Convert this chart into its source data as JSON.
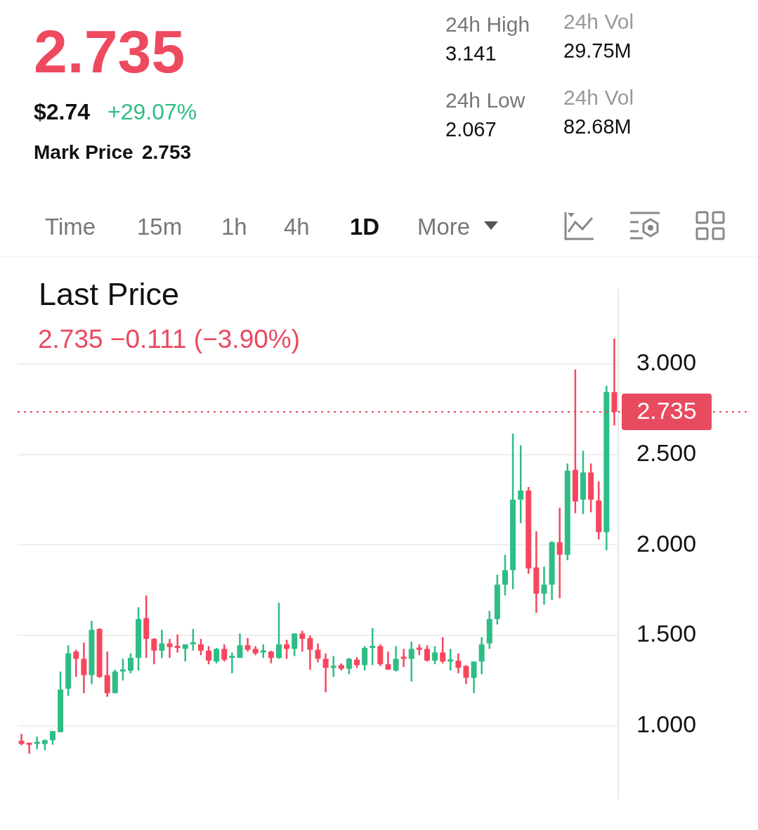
{
  "chart_data": {
    "type": "candlestick",
    "title": "Last Price",
    "subtitle": "2.735  −0.111 (−3.90%)",
    "annotations": [
      "2.735",
      "$2.74",
      "+29.07%",
      "Mark Price",
      "2.753",
      "24h High",
      "3.141",
      "24h Low",
      "2.067",
      "24h Vol",
      "29.75M",
      "24h Vol",
      "82.68M",
      "Time",
      "15m",
      "1h",
      "4h",
      "1D",
      "More"
    ],
    "categories": [
      null,
      null,
      null,
      null,
      null,
      null,
      null,
      null,
      null,
      null,
      null,
      null,
      null,
      null,
      null,
      null,
      null,
      null,
      null,
      null,
      null,
      null,
      null,
      null,
      null,
      null,
      null,
      null,
      null,
      null,
      null,
      null,
      null,
      null,
      null,
      null,
      null,
      null,
      null,
      null,
      null,
      null,
      null,
      null,
      null,
      null,
      null,
      null,
      null,
      null,
      null,
      null,
      null,
      null,
      null,
      null,
      null,
      null,
      null,
      null,
      null,
      null,
      null,
      null,
      null,
      null,
      null,
      null,
      null,
      null,
      null,
      null,
      null,
      null,
      null,
      null,
      null
    ],
    "ohlc": [
      [
        0.917,
        0.955,
        0.892,
        0.9
      ],
      [
        0.9,
        0.905,
        0.845,
        0.895
      ],
      [
        0.9,
        0.94,
        0.87,
        0.905
      ],
      [
        0.9,
        0.925,
        0.865,
        0.92
      ],
      [
        0.92,
        0.97,
        0.895,
        0.97
      ],
      [
        0.965,
        1.3,
        0.965,
        1.2
      ],
      [
        1.205,
        1.445,
        1.165,
        1.4
      ],
      [
        1.41,
        1.42,
        1.27,
        1.37
      ],
      [
        1.37,
        1.46,
        1.18,
        1.28
      ],
      [
        1.28,
        1.58,
        1.23,
        1.53
      ],
      [
        1.535,
        1.54,
        1.265,
        1.27
      ],
      [
        1.28,
        1.41,
        1.16,
        1.18
      ],
      [
        1.18,
        1.31,
        1.18,
        1.3
      ],
      [
        1.3,
        1.37,
        1.25,
        1.305
      ],
      [
        1.305,
        1.4,
        1.29,
        1.375
      ],
      [
        1.375,
        1.655,
        1.305,
        1.59
      ],
      [
        1.595,
        1.72,
        1.375,
        1.48
      ],
      [
        1.48,
        1.485,
        1.34,
        1.415
      ],
      [
        1.415,
        1.53,
        1.375,
        1.455
      ],
      [
        1.455,
        1.48,
        1.375,
        1.435
      ],
      [
        1.44,
        1.505,
        1.405,
        1.43
      ],
      [
        1.425,
        1.45,
        1.355,
        1.45
      ],
      [
        1.45,
        1.535,
        1.415,
        1.455
      ],
      [
        1.45,
        1.48,
        1.39,
        1.415
      ],
      [
        1.415,
        1.44,
        1.34,
        1.36
      ],
      [
        1.355,
        1.43,
        1.345,
        1.425
      ],
      [
        1.425,
        1.45,
        1.355,
        1.365
      ],
      [
        1.375,
        1.405,
        1.29,
        1.38
      ],
      [
        1.375,
        1.51,
        1.375,
        1.445
      ],
      [
        1.445,
        1.485,
        1.41,
        1.42
      ],
      [
        1.425,
        1.44,
        1.39,
        1.4
      ],
      [
        1.405,
        1.45,
        1.375,
        1.41
      ],
      [
        1.41,
        1.415,
        1.345,
        1.375
      ],
      [
        1.375,
        1.68,
        1.37,
        1.45
      ],
      [
        1.45,
        1.475,
        1.37,
        1.425
      ],
      [
        1.425,
        1.51,
        1.385,
        1.51
      ],
      [
        1.51,
        1.525,
        1.41,
        1.48
      ],
      [
        1.485,
        1.5,
        1.31,
        1.42
      ],
      [
        1.42,
        1.455,
        1.35,
        1.37
      ],
      [
        1.37,
        1.4,
        1.185,
        1.32
      ],
      [
        1.32,
        1.385,
        1.27,
        1.33
      ],
      [
        1.335,
        1.345,
        1.305,
        1.315
      ],
      [
        1.315,
        1.375,
        1.285,
        1.37
      ],
      [
        1.365,
        1.38,
        1.32,
        1.335
      ],
      [
        1.335,
        1.44,
        1.305,
        1.43
      ],
      [
        1.43,
        1.54,
        1.335,
        1.44
      ],
      [
        1.44,
        1.45,
        1.33,
        1.34
      ],
      [
        1.34,
        1.41,
        1.31,
        1.31
      ],
      [
        1.305,
        1.44,
        1.3,
        1.37
      ],
      [
        1.375,
        1.425,
        1.325,
        1.37
      ],
      [
        1.37,
        1.465,
        1.245,
        1.425
      ],
      [
        1.43,
        1.45,
        1.39,
        1.42
      ],
      [
        1.425,
        1.445,
        1.355,
        1.36
      ],
      [
        1.36,
        1.44,
        1.34,
        1.405
      ],
      [
        1.405,
        1.49,
        1.345,
        1.355
      ],
      [
        1.355,
        1.425,
        1.305,
        1.36
      ],
      [
        1.36,
        1.4,
        1.29,
        1.32
      ],
      [
        1.33,
        1.335,
        1.23,
        1.265
      ],
      [
        1.265,
        1.355,
        1.18,
        1.355
      ],
      [
        1.355,
        1.49,
        1.285,
        1.45
      ],
      [
        1.455,
        1.635,
        1.425,
        1.59
      ],
      [
        1.59,
        1.835,
        1.56,
        1.78
      ],
      [
        1.78,
        1.945,
        1.72,
        1.86
      ],
      [
        1.86,
        2.615,
        1.755,
        2.25
      ],
      [
        2.25,
        2.55,
        2.12,
        2.3
      ],
      [
        2.3,
        2.32,
        1.84,
        1.87
      ],
      [
        1.875,
        2.075,
        1.625,
        1.73
      ],
      [
        1.73,
        1.88,
        1.67,
        1.78
      ],
      [
        1.78,
        2.02,
        1.695,
        2.015
      ],
      [
        2.015,
        2.205,
        1.705,
        1.945
      ],
      [
        1.945,
        2.45,
        1.915,
        2.41
      ],
      [
        2.415,
        2.97,
        2.175,
        2.24
      ],
      [
        2.25,
        2.52,
        2.17,
        2.4
      ],
      [
        2.4,
        2.45,
        2.18,
        2.25
      ],
      [
        2.245,
        2.35,
        2.03,
        2.07
      ],
      [
        2.07,
        2.88,
        1.97,
        2.845
      ],
      [
        2.845,
        3.141,
        2.66,
        2.735
      ]
    ],
    "colors": [
      "#f6465d",
      "#f6465d",
      "#2ebd85",
      "#2ebd85",
      "#2ebd85",
      "#2ebd85",
      "#2ebd85",
      "#f6465d",
      "#f6465d",
      "#2ebd85",
      "#f6465d",
      "#f6465d",
      "#2ebd85",
      "#2ebd85",
      "#2ebd85",
      "#2ebd85",
      "#f6465d",
      "#f6465d",
      "#2ebd85",
      "#f6465d",
      "#f6465d",
      "#2ebd85",
      "#2ebd85",
      "#f6465d",
      "#f6465d",
      "#2ebd85",
      "#f6465d",
      "#2ebd85",
      "#2ebd85",
      "#f6465d",
      "#f6465d",
      "#2ebd85",
      "#f6465d",
      "#2ebd85",
      "#f6465d",
      "#2ebd85",
      "#f6465d",
      "#f6465d",
      "#f6465d",
      "#f6465d",
      "#2ebd85",
      "#f6465d",
      "#2ebd85",
      "#f6465d",
      "#2ebd85",
      "#2ebd85",
      "#f6465d",
      "#f6465d",
      "#2ebd85",
      "#f6465d",
      "#2ebd85",
      "#f6465d",
      "#f6465d",
      "#2ebd85",
      "#f6465d",
      "#2ebd85",
      "#f6465d",
      "#f6465d",
      "#2ebd85",
      "#2ebd85",
      "#2ebd85",
      "#2ebd85",
      "#2ebd85",
      "#2ebd85",
      "#2ebd85",
      "#f6465d",
      "#f6465d",
      "#2ebd85",
      "#2ebd85",
      "#f6465d",
      "#2ebd85",
      "#f6465d",
      "#2ebd85",
      "#f6465d",
      "#f6465d",
      "#2ebd85",
      "#f6465d"
    ],
    "ylim": [
      0.6,
      3.41
    ],
    "yticks": [
      {
        "value": 1,
        "label": "1.000"
      },
      {
        "value": 1.5,
        "label": "1.500"
      },
      {
        "value": 2,
        "label": "2.000"
      },
      {
        "value": 2.5,
        "label": "2.500"
      },
      {
        "value": 3,
        "label": "3.000"
      }
    ],
    "ref_lines": [
      {
        "axis": "y",
        "value": 2.735,
        "label": "2.735",
        "color": "#e84a5f",
        "line_style": "dotted"
      }
    ],
    "grid": "y",
    "legend": false,
    "tick_labels": "y"
  }
}
